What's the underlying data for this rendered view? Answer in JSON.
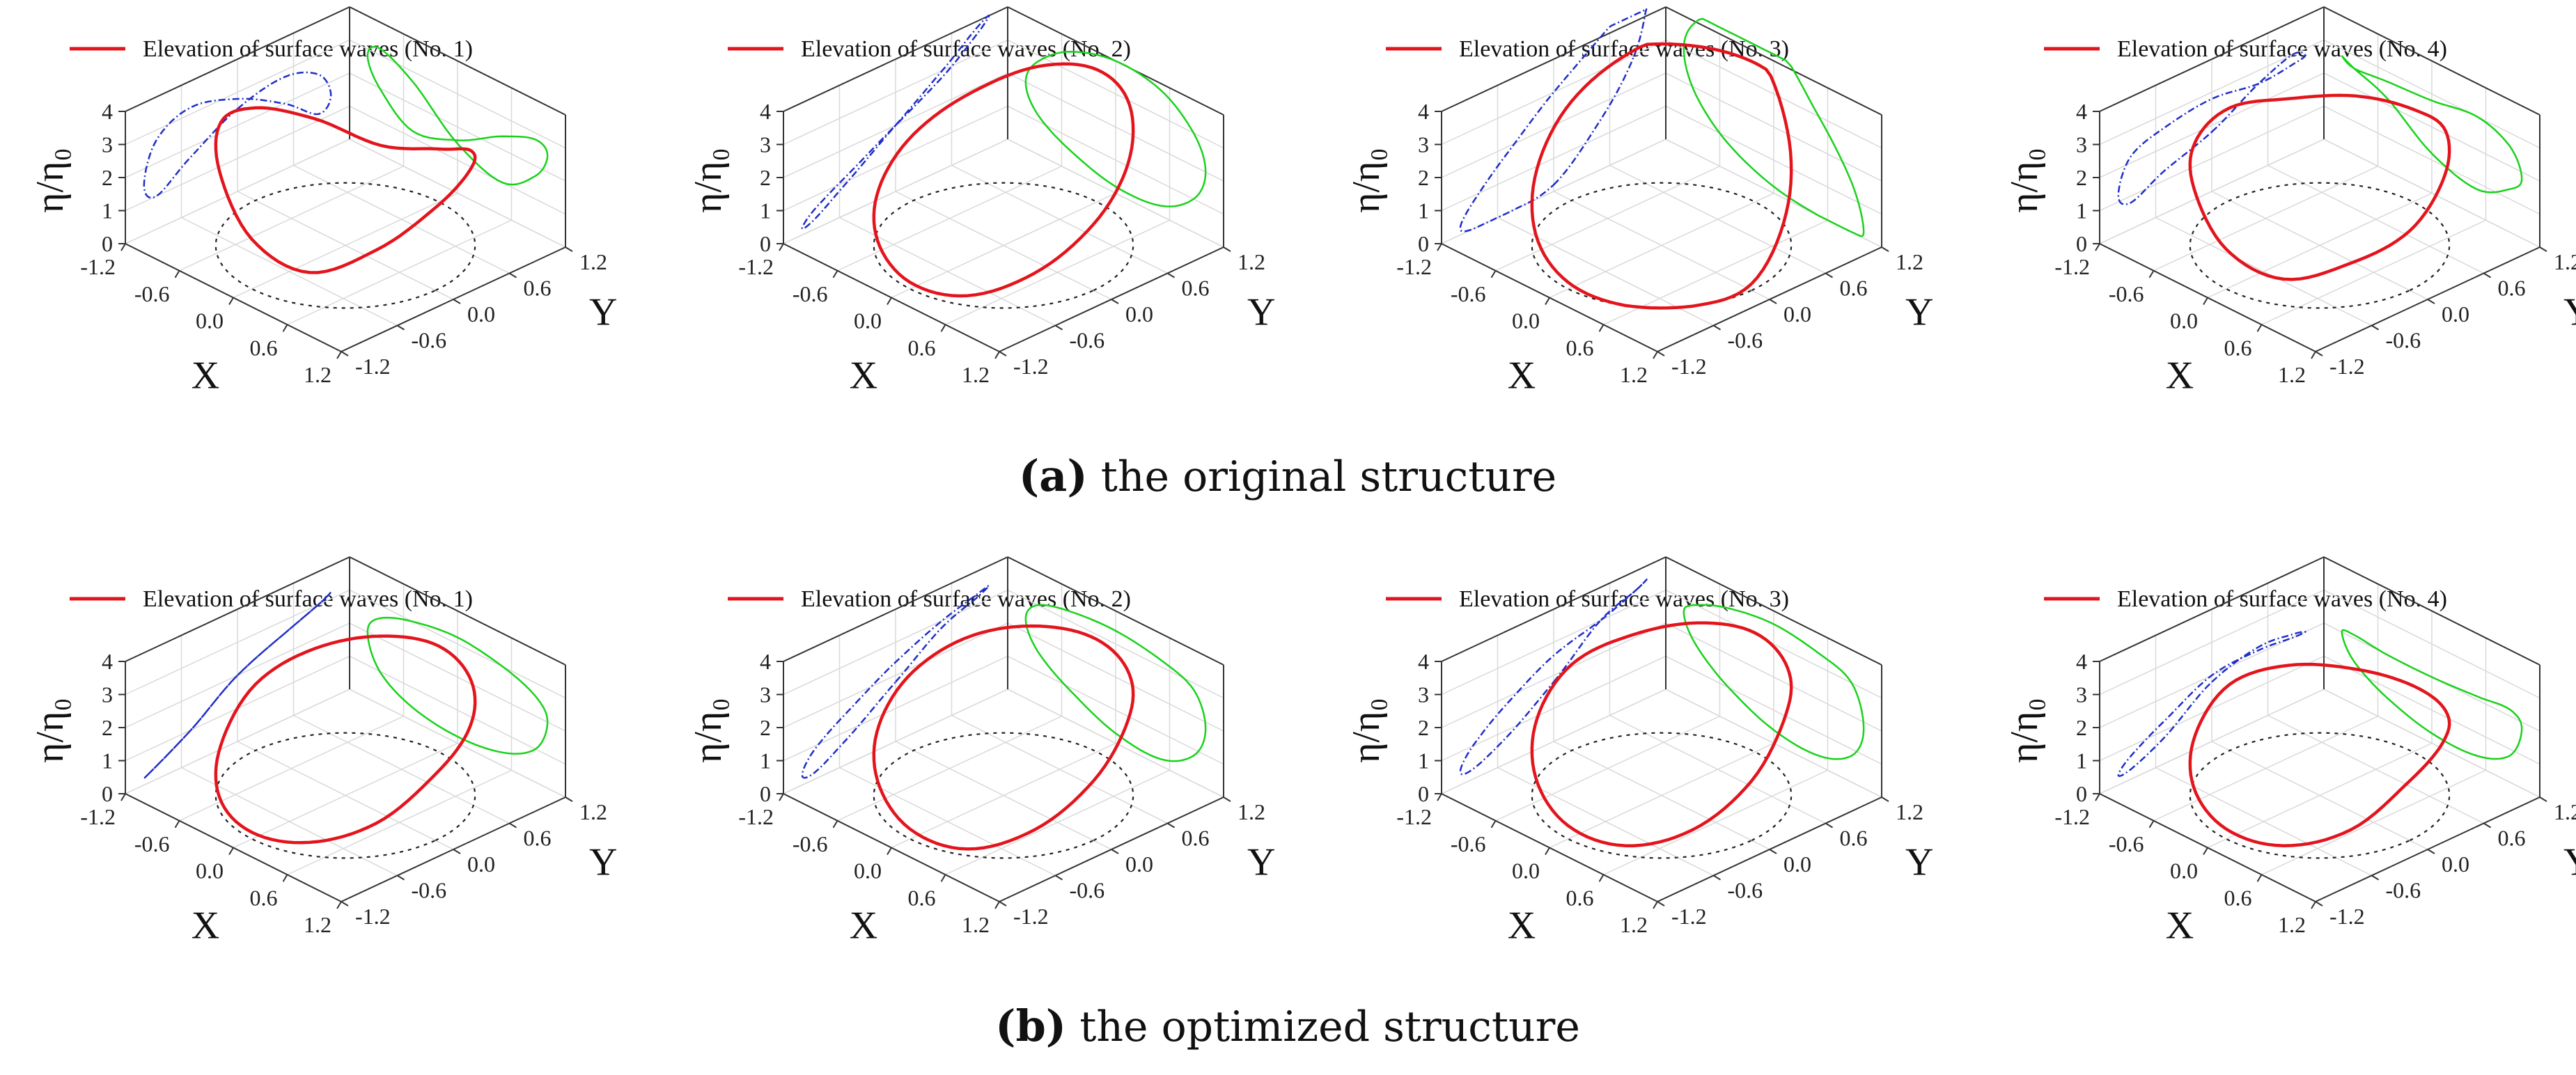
{
  "figure": {
    "rows": [
      {
        "caption_letter": "(a)",
        "caption_text": " the original structure",
        "panels": [
          {
            "legend": "Elevation of surface waves (No. 1)",
            "chart_data": {
              "type": "line",
              "title": "",
              "series_name": "Elevation of surface waves (No. 1)",
              "xlabel": "X",
              "ylabel": "Y",
              "zlabel": "η/η₀",
              "xlim": [
                -1.2,
                1.2
              ],
              "ylim": [
                -1.2,
                1.2
              ],
              "zlim": [
                0,
                4
              ],
              "xticks": [
                "-1.2",
                "-0.6",
                "0.0",
                "0.6",
                "1.2"
              ],
              "yticks": [
                "-1.2",
                "-0.6",
                "0.0",
                "0.6",
                "1.2"
              ],
              "zticks": [
                "0",
                "1",
                "2",
                "3",
                "4"
              ],
              "theta_deg": [
                0,
                30,
                60,
                90,
                120,
                150,
                180,
                210,
                240,
                270,
                300,
                330
              ],
              "elevation": [
                2.5,
                2.8,
                2.4,
                1.6,
                1.2,
                2.0,
                2.8,
                3.2,
                2.7,
                1.5,
                1.0,
                1.7
              ]
            }
          },
          {
            "legend": "Elevation of surface waves (No. 2)",
            "chart_data": {
              "type": "line",
              "title": "",
              "series_name": "Elevation of surface waves (No. 2)",
              "xlabel": "X",
              "ylabel": "Y",
              "zlabel": "η/η₀",
              "xlim": [
                -1.2,
                1.2
              ],
              "ylim": [
                -1.2,
                1.2
              ],
              "zlim": [
                0,
                4
              ],
              "xticks": [
                "-1.2",
                "-0.6",
                "0.0",
                "0.6",
                "1.2"
              ],
              "yticks": [
                "-1.2",
                "-0.6",
                "0.0",
                "0.6",
                "1.2"
              ],
              "zticks": [
                "0",
                "1",
                "2",
                "3",
                "4"
              ],
              "theta_deg": [
                0,
                30,
                60,
                90,
                120,
                150,
                180,
                210,
                240,
                270,
                300,
                330
              ],
              "elevation": [
                2.0,
                3.0,
                3.8,
                4.0,
                3.6,
                2.8,
                2.0,
                1.2,
                0.6,
                0.2,
                0.3,
                1.0
              ]
            }
          },
          {
            "legend": "Elevation of surface waves (No. 3)",
            "chart_data": {
              "type": "line",
              "title": "",
              "series_name": "Elevation of surface waves (No. 3)",
              "xlabel": "X",
              "ylabel": "Y",
              "zlabel": "η/η₀",
              "xlim": [
                -1.2,
                1.2
              ],
              "ylim": [
                -1.2,
                1.2
              ],
              "zlim": [
                0,
                4
              ],
              "xticks": [
                "-1.2",
                "-0.6",
                "0.0",
                "0.6",
                "1.2"
              ],
              "yticks": [
                "-1.2",
                "-0.6",
                "0.0",
                "0.6",
                "1.2"
              ],
              "zticks": [
                "0",
                "1",
                "2",
                "3",
                "4"
              ],
              "theta_deg": [
                0,
                30,
                60,
                90,
                120,
                150,
                180,
                210,
                240,
                270,
                300,
                330
              ],
              "elevation": [
                0.2,
                1.5,
                3.0,
                4.6,
                4.8,
                4.0,
                3.0,
                1.8,
                0.8,
                0.2,
                0.0,
                0.0
              ]
            }
          },
          {
            "legend": "Elevation of surface waves (No. 4)",
            "chart_data": {
              "type": "line",
              "title": "",
              "series_name": "Elevation of surface waves (No. 4)",
              "xlabel": "X",
              "ylabel": "Y",
              "zlabel": "η/η₀",
              "xlim": [
                -1.2,
                1.2
              ],
              "ylim": [
                -1.2,
                1.2
              ],
              "zlim": [
                0,
                4
              ],
              "xticks": [
                "-1.2",
                "-0.6",
                "0.0",
                "0.6",
                "1.2"
              ],
              "yticks": [
                "-1.2",
                "-0.6",
                "0.0",
                "0.6",
                "1.2"
              ],
              "zticks": [
                "0",
                "1",
                "2",
                "3",
                "4"
              ],
              "theta_deg": [
                0,
                30,
                60,
                90,
                120,
                150,
                180,
                210,
                240,
                270,
                300,
                330
              ],
              "elevation": [
                1.8,
                2.6,
                3.0,
                2.8,
                2.7,
                2.6,
                2.8,
                2.6,
                2.2,
                1.2,
                0.8,
                1.3
              ]
            }
          }
        ]
      },
      {
        "caption_letter": "(b)",
        "caption_text": " the optimized structure",
        "panels": [
          {
            "legend": "Elevation of surface waves (No. 1)",
            "chart_data": {
              "type": "line",
              "title": "",
              "series_name": "Elevation of surface waves (No. 1)",
              "xlabel": "X",
              "ylabel": "Y",
              "zlabel": "η/η₀",
              "xlim": [
                -1.2,
                1.2
              ],
              "ylim": [
                -1.2,
                1.2
              ],
              "zlim": [
                0,
                4
              ],
              "xticks": [
                "-1.2",
                "-0.6",
                "0.0",
                "0.6",
                "1.2"
              ],
              "yticks": [
                "-1.2",
                "-0.6",
                "0.0",
                "0.6",
                "1.2"
              ],
              "zticks": [
                "0",
                "1",
                "2",
                "3",
                "4"
              ],
              "theta_deg": [
                0,
                30,
                60,
                90,
                120,
                150,
                180,
                210,
                240,
                270,
                300,
                330
              ],
              "elevation": [
                2.0,
                2.6,
                3.0,
                3.2,
                3.0,
                2.6,
                2.0,
                1.0,
                0.4,
                0.2,
                0.4,
                1.0
              ]
            }
          },
          {
            "legend": "Elevation of surface waves (No. 2)",
            "chart_data": {
              "type": "line",
              "title": "",
              "series_name": "Elevation of surface waves (No. 2)",
              "xlabel": "X",
              "ylabel": "Y",
              "zlabel": "η/η₀",
              "xlim": [
                -1.2,
                1.2
              ],
              "ylim": [
                -1.2,
                1.2
              ],
              "zlim": [
                0,
                4
              ],
              "xticks": [
                "-1.2",
                "-0.6",
                "0.0",
                "0.6",
                "1.2"
              ],
              "yticks": [
                "-1.2",
                "-0.6",
                "0.0",
                "0.6",
                "1.2"
              ],
              "zticks": [
                "0",
                "1",
                "2",
                "3",
                "4"
              ],
              "theta_deg": [
                0,
                30,
                60,
                90,
                120,
                150,
                180,
                210,
                240,
                270,
                300,
                330
              ],
              "elevation": [
                1.8,
                2.8,
                3.2,
                3.4,
                3.3,
                3.0,
                2.4,
                1.6,
                0.9,
                0.3,
                0.2,
                0.8
              ]
            }
          },
          {
            "legend": "Elevation of surface waves (No. 3)",
            "chart_data": {
              "type": "line",
              "title": "",
              "series_name": "Elevation of surface waves (No. 3)",
              "xlabel": "X",
              "ylabel": "Y",
              "zlabel": "η/η₀",
              "xlim": [
                -1.2,
                1.2
              ],
              "ylim": [
                -1.2,
                1.2
              ],
              "zlim": [
                0,
                4
              ],
              "xticks": [
                "-1.2",
                "-0.6",
                "0.0",
                "0.6",
                "1.2"
              ],
              "yticks": [
                "-1.2",
                "-0.6",
                "0.0",
                "0.6",
                "1.2"
              ],
              "zticks": [
                "0",
                "1",
                "2",
                "3",
                "4"
              ],
              "theta_deg": [
                0,
                30,
                60,
                90,
                120,
                150,
                180,
                210,
                240,
                270,
                300,
                330
              ],
              "elevation": [
                1.8,
                3.0,
                3.4,
                3.6,
                3.4,
                3.0,
                2.6,
                1.8,
                1.0,
                0.4,
                0.3,
                0.8
              ]
            }
          },
          {
            "legend": "Elevation of surface waves (No. 4)",
            "chart_data": {
              "type": "line",
              "title": "",
              "series_name": "Elevation of surface waves (No. 4)",
              "xlabel": "X",
              "ylabel": "Y",
              "zlabel": "η/η₀",
              "xlim": [
                -1.2,
                1.2
              ],
              "ylim": [
                -1.2,
                1.2
              ],
              "zlim": [
                0,
                4
              ],
              "xticks": [
                "-1.2",
                "-0.6",
                "0.0",
                "0.6",
                "1.2"
              ],
              "yticks": [
                "-1.2",
                "-0.6",
                "0.0",
                "0.6",
                "1.2"
              ],
              "zticks": [
                "0",
                "1",
                "2",
                "3",
                "4"
              ],
              "theta_deg": [
                0,
                30,
                60,
                90,
                120,
                150,
                180,
                210,
                240,
                270,
                300,
                330
              ],
              "elevation": [
                1.8,
                2.2,
                2.1,
                2.0,
                2.0,
                2.1,
                2.0,
                1.3,
                0.7,
                0.3,
                0.3,
                0.8
              ]
            }
          }
        ]
      }
    ],
    "colors": {
      "series_line": "#e3141c",
      "projection_x": "#1f2ec8",
      "projection_y": "#18d21a",
      "floor_circle": "#222222",
      "grid": "#d9d9d9",
      "axis": "#333333"
    }
  }
}
